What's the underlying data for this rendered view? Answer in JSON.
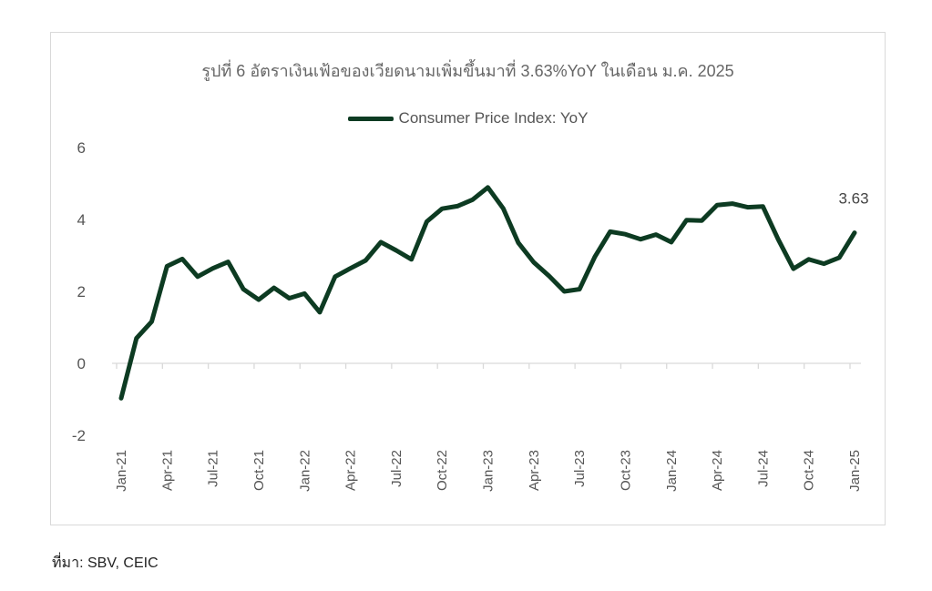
{
  "chart_data": {
    "type": "line",
    "title": "รูปที่ 6 อัตราเงินเฟ้อของเวียดนามเพิ่มขึ้นมาที่ 3.63%YoY ในเดือน ม.ค. 2025",
    "legend": "top-center",
    "grid": false,
    "ylim": [
      -2,
      6
    ],
    "y_ticks": [
      "-2",
      "0",
      "2",
      "4",
      "6"
    ],
    "x_tick_labels": [
      "Jan-21",
      "Apr-21",
      "Jul-21",
      "Oct-21",
      "Jan-22",
      "Apr-22",
      "Jul-22",
      "Oct-22",
      "Jan-23",
      "Apr-23",
      "Jul-23",
      "Oct-23",
      "Jan-24",
      "Apr-24",
      "Jul-24",
      "Oct-24",
      "Jan-25"
    ],
    "x_tick_every": 3,
    "series": [
      {
        "name": "Consumer Price Index: YoY",
        "color": "#0d3b22",
        "values": [
          -0.97,
          0.7,
          1.16,
          2.7,
          2.9,
          2.41,
          2.64,
          2.82,
          2.06,
          1.77,
          2.1,
          1.81,
          1.94,
          1.42,
          2.41,
          2.64,
          2.86,
          3.37,
          3.14,
          2.89,
          3.94,
          4.3,
          4.37,
          4.55,
          4.89,
          4.31,
          3.35,
          2.81,
          2.43,
          2.0,
          2.06,
          2.96,
          3.66,
          3.59,
          3.45,
          3.58,
          3.37,
          3.98,
          3.97,
          4.4,
          4.44,
          4.34,
          4.36,
          3.45,
          2.63,
          2.89,
          2.77,
          2.94,
          3.63
        ]
      }
    ],
    "annotation": {
      "index": 48,
      "text": "3.63"
    }
  },
  "source": "ที่มา: SBV, CEIC"
}
